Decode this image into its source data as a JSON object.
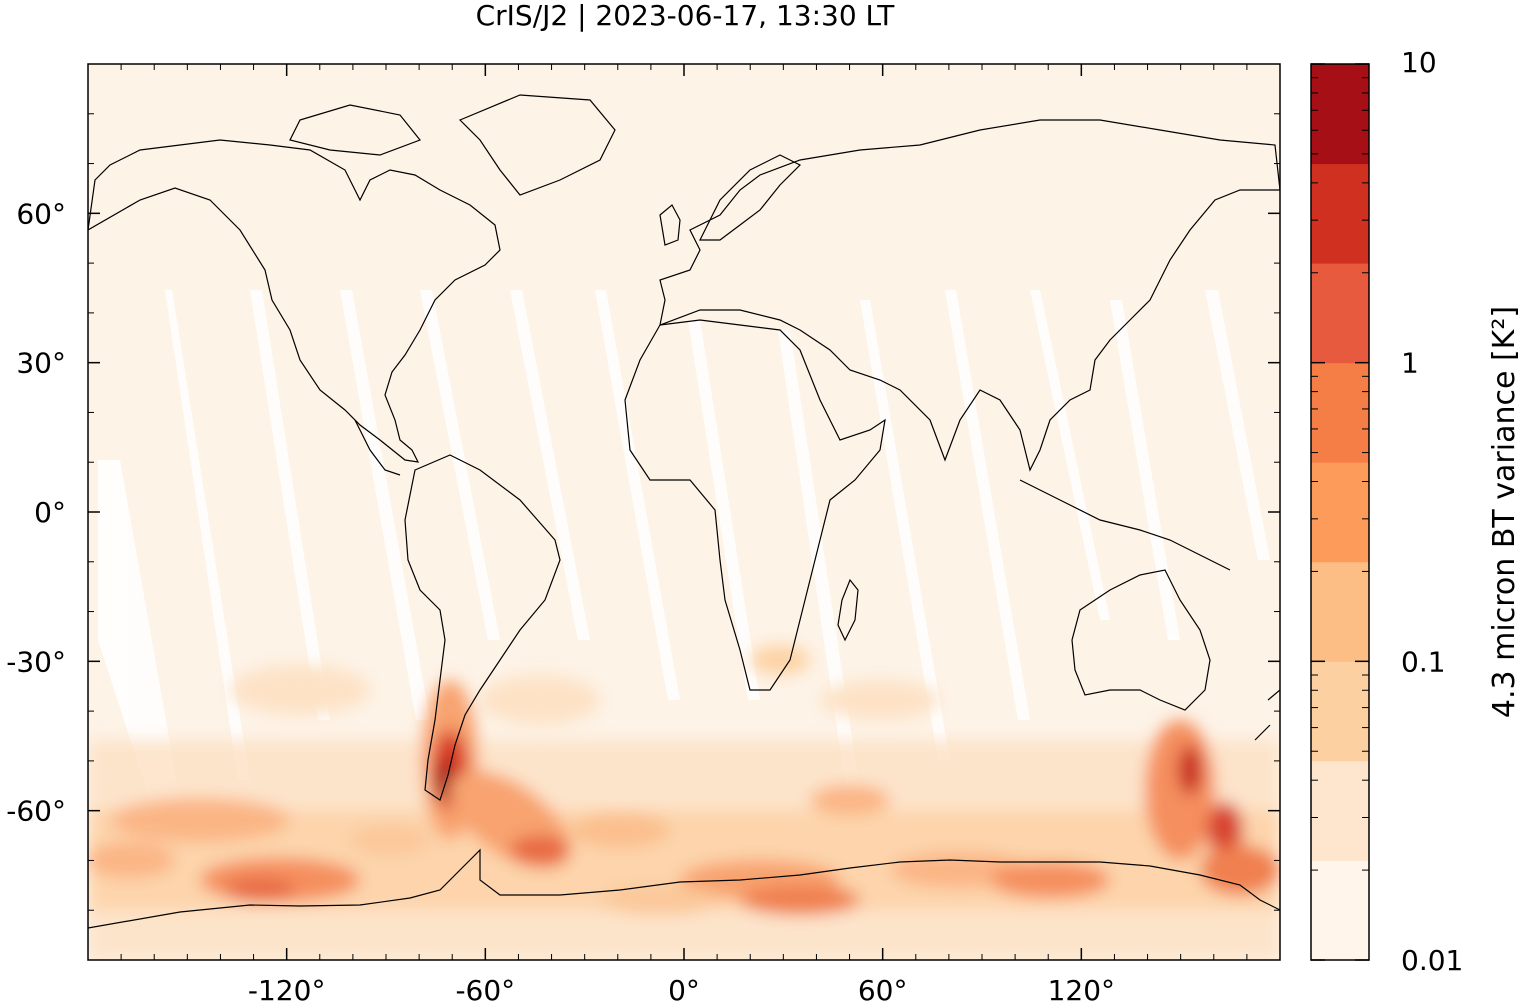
{
  "title": "CrIS/J2 | 2023-06-17, 13:30 LT",
  "map": {
    "projection": "equirectangular",
    "lon_range": [
      -180,
      180
    ],
    "lat_range": [
      -90,
      90
    ],
    "lon_ticks": [
      {
        "value": -120,
        "label": "-120°"
      },
      {
        "value": -60,
        "label": "-60°"
      },
      {
        "value": 0,
        "label": "0°"
      },
      {
        "value": 60,
        "label": "60°"
      },
      {
        "value": 120,
        "label": "120°"
      }
    ],
    "lat_ticks": [
      {
        "value": 60,
        "label": "60°"
      },
      {
        "value": 30,
        "label": "30°"
      },
      {
        "value": 0,
        "label": "0°"
      },
      {
        "value": -30,
        "label": "-30°"
      },
      {
        "value": -60,
        "label": "-60°"
      }
    ]
  },
  "colorbar": {
    "label": "4.3 micron BT variance [K²]",
    "scale": "log",
    "range": [
      0.01,
      10
    ],
    "tick_labels": [
      {
        "value": 10,
        "label": "10"
      },
      {
        "value": 1,
        "label": "1"
      },
      {
        "value": 0.1,
        "label": "0.1"
      },
      {
        "value": 0.01,
        "label": "0.01"
      }
    ],
    "colors": [
      "#fff5eb",
      "#fee6ce",
      "#fdd0a2",
      "#fdbe85",
      "#fd9c5a",
      "#f57e46",
      "#e85a3d",
      "#d0301f",
      "#a50f15"
    ]
  }
}
